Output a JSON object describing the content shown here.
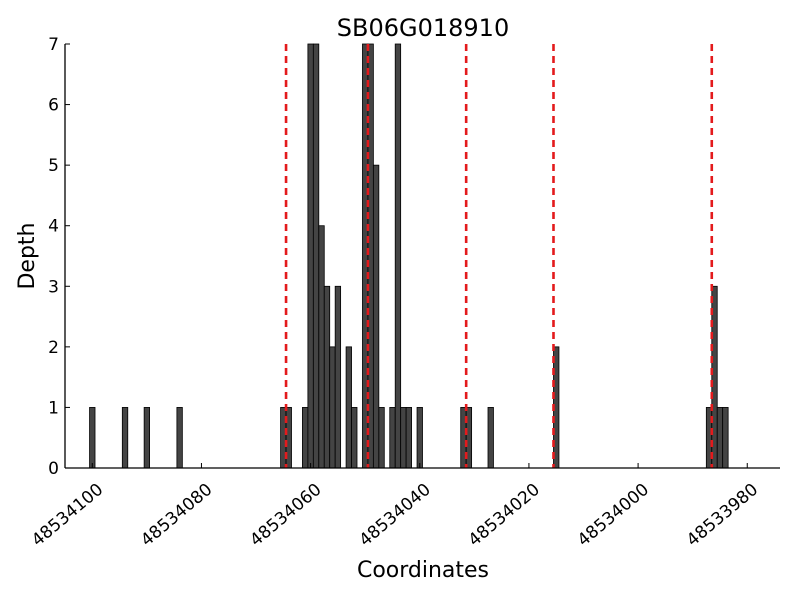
{
  "chart_data": {
    "type": "bar",
    "title": "SB06G018910",
    "xlabel": "Coordinates",
    "ylabel": "Depth",
    "xlim": [
      48534105,
      48533974
    ],
    "ylim": [
      0,
      7
    ],
    "x_ticks": [
      48534100,
      48534080,
      48534060,
      48534040,
      48534020,
      48534000,
      48533980
    ],
    "y_ticks": [
      0,
      1,
      2,
      3,
      4,
      5,
      6,
      7
    ],
    "grid": false,
    "bars": [
      {
        "x": 48534100,
        "y": 1
      },
      {
        "x": 48534094,
        "y": 1
      },
      {
        "x": 48534090,
        "y": 1
      },
      {
        "x": 48534084,
        "y": 1
      },
      {
        "x": 48534065,
        "y": 1
      },
      {
        "x": 48534064,
        "y": 1
      },
      {
        "x": 48534061,
        "y": 1
      },
      {
        "x": 48534060,
        "y": 7
      },
      {
        "x": 48534059,
        "y": 7
      },
      {
        "x": 48534058,
        "y": 4
      },
      {
        "x": 48534057,
        "y": 3
      },
      {
        "x": 48534056,
        "y": 2
      },
      {
        "x": 48534055,
        "y": 3
      },
      {
        "x": 48534053,
        "y": 2
      },
      {
        "x": 48534052,
        "y": 1
      },
      {
        "x": 48534050,
        "y": 7
      },
      {
        "x": 48534049,
        "y": 7
      },
      {
        "x": 48534048,
        "y": 5
      },
      {
        "x": 48534047,
        "y": 1
      },
      {
        "x": 48534045,
        "y": 1
      },
      {
        "x": 48534044,
        "y": 7
      },
      {
        "x": 48534043,
        "y": 1
      },
      {
        "x": 48534042,
        "y": 1
      },
      {
        "x": 48534040,
        "y": 1
      },
      {
        "x": 48534032,
        "y": 1
      },
      {
        "x": 48534031,
        "y": 1
      },
      {
        "x": 48534027,
        "y": 1
      },
      {
        "x": 48534015,
        "y": 2
      },
      {
        "x": 48533987,
        "y": 1
      },
      {
        "x": 48533986,
        "y": 3
      },
      {
        "x": 48533985,
        "y": 1
      },
      {
        "x": 48533984,
        "y": 1
      }
    ],
    "reference_lines": [
      48534064.5,
      48534049.5,
      48534031.5,
      48534015.5,
      48533986.5
    ],
    "bar_color": "#444444",
    "reference_line_color": "#e31a1c"
  }
}
